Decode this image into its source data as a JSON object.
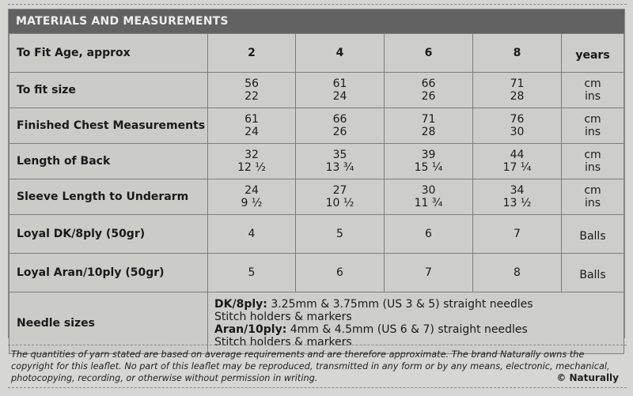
{
  "title": "MATERIALS AND MEASUREMENTS",
  "header": {
    "label": "To Fit Age, approx",
    "ages": [
      "2",
      "4",
      "6",
      "8"
    ],
    "unit": "years"
  },
  "rows": [
    {
      "label": "To fit size",
      "values": [
        [
          "56",
          "22"
        ],
        [
          "61",
          "24"
        ],
        [
          "66",
          "26"
        ],
        [
          "71",
          "28"
        ]
      ],
      "unit": [
        "cm",
        "ins"
      ]
    },
    {
      "label": "Finished Chest Measurements",
      "values": [
        [
          "61",
          "24"
        ],
        [
          "66",
          "26"
        ],
        [
          "71",
          "28"
        ],
        [
          "76",
          "30"
        ]
      ],
      "unit": [
        "cm",
        "ins"
      ]
    },
    {
      "label": "Length of Back",
      "values": [
        [
          "32",
          "12 ½"
        ],
        [
          "35",
          "13 ¾"
        ],
        [
          "39",
          "15 ¼"
        ],
        [
          "44",
          "17 ¼"
        ]
      ],
      "unit": [
        "cm",
        "ins"
      ]
    },
    {
      "label": "Sleeve Length to Underarm",
      "values": [
        [
          "24",
          "9 ½"
        ],
        [
          "27",
          "10 ½"
        ],
        [
          "30",
          "11 ¾"
        ],
        [
          "34",
          "13 ½"
        ]
      ],
      "unit": [
        "cm",
        "ins"
      ]
    },
    {
      "label": "Loyal DK/8ply (50gr)",
      "values": [
        [
          "4"
        ],
        [
          "5"
        ],
        [
          "6"
        ],
        [
          "7"
        ]
      ],
      "unit": [
        "Balls"
      ]
    },
    {
      "label": "Loyal Aran/10ply (50gr)",
      "values": [
        [
          "5"
        ],
        [
          "6"
        ],
        [
          "7"
        ],
        [
          "8"
        ]
      ],
      "unit": [
        "Balls"
      ]
    }
  ],
  "needles": {
    "label": "Needle sizes",
    "lines": [
      {
        "bold": "DK/8ply:",
        "text": " 3.25mm & 3.75mm (US 3 & 5) straight needles"
      },
      {
        "bold": "",
        "text": "Stitch holders & markers"
      },
      {
        "bold": "Aran/10ply:",
        "text": " 4mm & 4.5mm (US 6 & 7) straight needles"
      },
      {
        "bold": "",
        "text": "Stitch holders & markers"
      }
    ]
  },
  "footer": {
    "text": "The quantities of yarn stated are based on average requirements and are therefore approximate. The brand Naturally owns the copyright for this leaflet. No part of this leaflet may be reproduced, transmitted in any form or by any means, electronic, mechanical, photocopying, recording, or otherwise without permission in writing.",
    "copyright": "© Naturally"
  }
}
